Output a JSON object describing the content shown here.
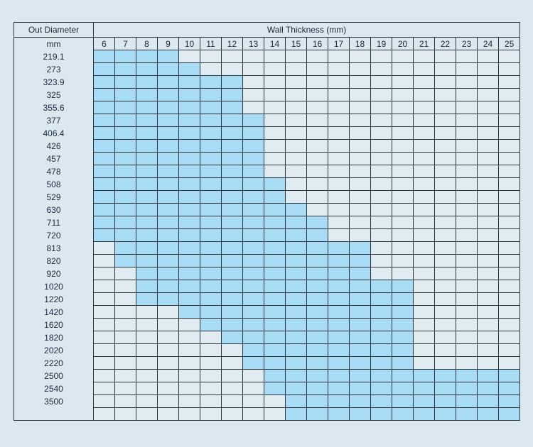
{
  "table": {
    "od_header": "Out Diameter",
    "wt_header": "Wall Thickness (mm)",
    "unit_label": "mm",
    "thickness_values": [
      "6",
      "7",
      "8",
      "9",
      "10",
      "11",
      "12",
      "13",
      "14",
      "15",
      "16",
      "17",
      "18",
      "19",
      "20",
      "21",
      "22",
      "23",
      "24",
      "25"
    ],
    "rows": [
      {
        "od": "219.1",
        "available": [
          6,
          9
        ]
      },
      {
        "od": "273",
        "available": [
          6,
          10
        ]
      },
      {
        "od": "323.9",
        "available": [
          6,
          12
        ]
      },
      {
        "od": "325",
        "available": [
          6,
          12
        ]
      },
      {
        "od": "355.6",
        "available": [
          6,
          12
        ]
      },
      {
        "od": "377",
        "available": [
          6,
          13
        ]
      },
      {
        "od": "406.4",
        "available": [
          6,
          13
        ]
      },
      {
        "od": "426",
        "available": [
          6,
          13
        ]
      },
      {
        "od": "457",
        "available": [
          6,
          13
        ]
      },
      {
        "od": "478",
        "available": [
          6,
          13
        ]
      },
      {
        "od": "508",
        "available": [
          6,
          14
        ]
      },
      {
        "od": "529",
        "available": [
          6,
          14
        ]
      },
      {
        "od": "630",
        "available": [
          6,
          15
        ]
      },
      {
        "od": "711",
        "available": [
          6,
          16
        ]
      },
      {
        "od": "720",
        "available": [
          6,
          16
        ]
      },
      {
        "od": "813",
        "available": [
          7,
          18
        ]
      },
      {
        "od": "820",
        "available": [
          7,
          18
        ]
      },
      {
        "od": "920",
        "available": [
          8,
          18
        ]
      },
      {
        "od": "1020",
        "available": [
          8,
          20
        ]
      },
      {
        "od": "1220",
        "available": [
          8,
          20
        ]
      },
      {
        "od": "1420",
        "available": [
          10,
          20
        ]
      },
      {
        "od": "1620",
        "available": [
          11,
          20
        ]
      },
      {
        "od": "1820",
        "available": [
          12,
          20
        ]
      },
      {
        "od": "2020",
        "available": [
          13,
          20
        ]
      },
      {
        "od": "2220",
        "available": [
          13,
          20
        ]
      },
      {
        "od": "2500",
        "available": [
          14,
          25
        ]
      },
      {
        "od": "2540",
        "available": [
          14,
          25
        ]
      },
      {
        "od": "3500",
        "available": [
          15,
          25
        ]
      },
      {
        "od": "",
        "available": [
          15,
          25
        ]
      }
    ],
    "colors": {
      "available": "#a8dcf4",
      "unavailable": "#e1ebf2",
      "background": "#dce8f0",
      "border": "#2b3540"
    }
  }
}
